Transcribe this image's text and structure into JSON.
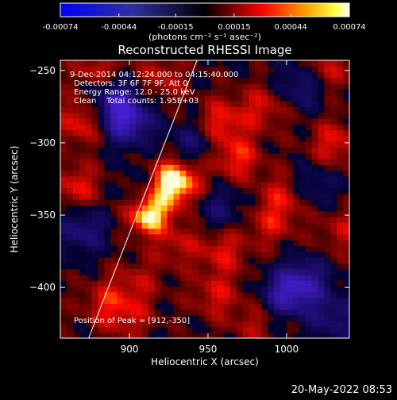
{
  "colorbar": {
    "tick_labels": [
      "-0.00074",
      "-0.00044",
      "-0.00015",
      "0.00015",
      "0.00044",
      "0.00074"
    ],
    "tick_values": [
      -0.00074,
      -0.00044,
      -0.00015,
      0.00015,
      0.00044,
      0.00074
    ],
    "range": [
      -0.00074,
      0.00074
    ],
    "units_label": "(photons cm⁻² s⁻¹ asec⁻²)",
    "colors": [
      "#0000ff",
      "#000000",
      "#ff0000",
      "#ffff00",
      "#ffffff"
    ]
  },
  "chart_data": {
    "type": "heatmap",
    "title": "Reconstructed RHESSI Image",
    "annotations": [
      "9-Dec-2014 04:12:24.000 to 04:15:40.000",
      "Detectors: 3F 6F 7F 9F, Att 0",
      "Energy Range: 12.0 - 25.0 keV",
      "Clean    Total counts: 1.95E+03"
    ],
    "peak_label": "Position of Peak = [912,-350]",
    "peak": {
      "x": 912,
      "y": -350
    },
    "xlabel": "Heliocentric X (arcsec)",
    "ylabel": "Heliocentric Y (arcsec)",
    "xlim": [
      856,
      1040
    ],
    "ylim": [
      -435,
      -243
    ],
    "x_ticks": [
      900,
      950,
      1000
    ],
    "x_tick_labels": [
      "900",
      "950",
      "1000"
    ],
    "y_ticks": [
      -250,
      -300,
      -350,
      -400
    ],
    "y_tick_labels": [
      "−250",
      "−300",
      "−350",
      "−400"
    ],
    "limb_line": {
      "x": [
        874,
        943
      ],
      "y": [
        -435,
        -243
      ]
    },
    "sources": [
      {
        "x": 912,
        "y": -350,
        "value": 0.00074
      },
      {
        "x": 925,
        "y": -330,
        "value": 0.0005
      },
      {
        "x": 930,
        "y": -325,
        "value": 0.00045
      },
      {
        "x": 870,
        "y": -285,
        "value": 0.0004
      },
      {
        "x": 866,
        "y": -330,
        "value": 0.00035
      },
      {
        "x": 958,
        "y": -285,
        "value": 0.00038
      },
      {
        "x": 968,
        "y": -310,
        "value": 0.0004
      },
      {
        "x": 985,
        "y": -275,
        "value": 0.0003
      },
      {
        "x": 1000,
        "y": -335,
        "value": 0.00035
      },
      {
        "x": 990,
        "y": -355,
        "value": 0.0003
      },
      {
        "x": 960,
        "y": -375,
        "value": 0.00032
      },
      {
        "x": 930,
        "y": -370,
        "value": 0.00025
      },
      {
        "x": 905,
        "y": -395,
        "value": 0.00022
      },
      {
        "x": 955,
        "y": -405,
        "value": 0.0003
      },
      {
        "x": 900,
        "y": -420,
        "value": 0.00025
      },
      {
        "x": 1030,
        "y": -300,
        "value": 0.00035
      },
      {
        "x": 1025,
        "y": -250,
        "value": 0.0003
      },
      {
        "x": 1035,
        "y": -360,
        "value": 0.00025
      },
      {
        "x": 920,
        "y": -255,
        "value": 0.00028
      },
      {
        "x": 980,
        "y": -425,
        "value": 0.00022
      },
      {
        "x": 880,
        "y": -250,
        "value": 0.0003
      },
      {
        "x": 885,
        "y": -410,
        "value": 0.0003
      },
      {
        "x": 898,
        "y": -285,
        "value": -0.0006
      },
      {
        "x": 890,
        "y": -270,
        "value": -0.00045
      },
      {
        "x": 1000,
        "y": -405,
        "value": -0.0005
      },
      {
        "x": 1012,
        "y": -395,
        "value": -0.0004
      },
      {
        "x": 940,
        "y": -300,
        "value": -0.0003
      },
      {
        "x": 1010,
        "y": -260,
        "value": -0.00035
      },
      {
        "x": 1015,
        "y": -330,
        "value": -0.0003
      },
      {
        "x": 870,
        "y": -360,
        "value": -0.00035
      },
      {
        "x": 958,
        "y": -345,
        "value": -0.00025
      },
      {
        "x": 910,
        "y": -330,
        "value": -0.0002
      },
      {
        "x": 1030,
        "y": -420,
        "value": -0.0003
      }
    ]
  },
  "timestamp": "20-May-2022 08:53"
}
